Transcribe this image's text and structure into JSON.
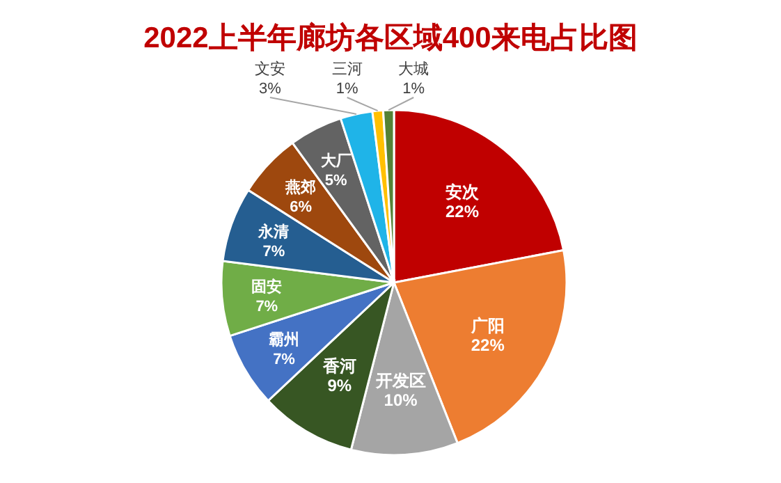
{
  "chart_data": {
    "type": "pie",
    "title": "2022上半年廊坊各区域400来电占比图",
    "categories": [
      "安次",
      "广阳",
      "开发区",
      "香河",
      "霸州",
      "固安",
      "永清",
      "燕郊",
      "大厂",
      "文安",
      "三河",
      "大城"
    ],
    "values": [
      22,
      22,
      10,
      9,
      7,
      7,
      7,
      6,
      5,
      3,
      1,
      1
    ],
    "colors": [
      "#c00000",
      "#ed7d31",
      "#a5a5a5",
      "#375623",
      "#4472c4",
      "#70ad47",
      "#255e91",
      "#9e480e",
      "#636363",
      "#1fb4e8",
      "#ffc000",
      "#548235"
    ],
    "value_labels": [
      "22%",
      "22%",
      "10%",
      "9%",
      "7%",
      "7%",
      "7%",
      "6%",
      "5%",
      "3%",
      "1%",
      "1%"
    ]
  }
}
